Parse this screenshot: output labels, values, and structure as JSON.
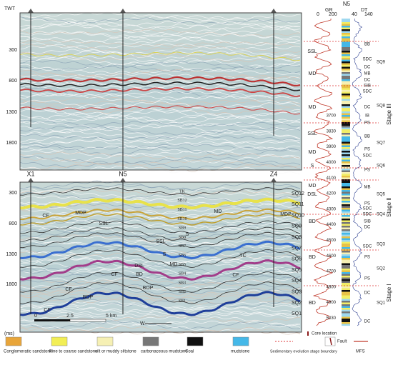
{
  "top_panel": {
    "axis_label": "TWT",
    "yticks": [
      300,
      800,
      1300,
      1800
    ]
  },
  "bottom_panel": {
    "wells": [
      "X1",
      "N5",
      "Z4"
    ],
    "yticks": [
      300,
      800,
      1300,
      1800
    ],
    "unit": "(ms)",
    "scale": [
      "0",
      "2.5",
      "5 km"
    ],
    "direction": "W",
    "horizons": [
      "TK",
      "SB12",
      "SB11",
      "SB10",
      "SB9",
      "SB8",
      "SB7",
      "SB6",
      "SB5",
      "SB4",
      "SB3",
      "SB2",
      "SB1"
    ],
    "sequences": [
      "SQ12",
      "SQ11",
      "SQ10",
      "SQ9",
      "SQ8",
      "SQ7",
      "SQ6",
      "SQ5",
      "SQ4",
      "SQ3",
      "SQ2",
      "SQ1"
    ],
    "facies": [
      "CF",
      "MDP",
      "SSL",
      "SSL",
      "MD",
      "MDP",
      "S",
      "S",
      "TC",
      "DSL",
      "CF",
      "BD",
      "MD",
      "CF",
      "BOP",
      "CF",
      "BDP",
      "CF"
    ]
  },
  "well_log": {
    "name": "N5",
    "gr_label": "GR",
    "gr_range": [
      "0",
      "200"
    ],
    "dt_label": "DT",
    "dt_range": [
      "40",
      "140"
    ],
    "depths": [
      3700,
      3830,
      3900,
      4000,
      4100,
      4200,
      4300,
      4400,
      4500,
      4600,
      4700,
      4800,
      4900,
      5030
    ],
    "facies_left": [
      "SSL",
      "MD",
      "MD",
      "SSL",
      "MD",
      "S",
      "MD",
      "DSL",
      "BD",
      "BD",
      "BD"
    ],
    "facies_right": [
      "BB",
      "SDC",
      "DC",
      "MB",
      "DC",
      "SIB",
      "SDC",
      "DC",
      "IB",
      "PS",
      "BB",
      "PS",
      "SDC",
      "PS",
      "MB",
      "PS",
      "SDC",
      "SDC",
      "SIB",
      "DC",
      "SDC",
      "PS",
      "PS",
      "DC",
      "DC"
    ],
    "sequences": [
      "SQ9",
      "SQ8",
      "SQ7",
      "SQ6",
      "SQ5",
      "SQ4",
      "SQ3",
      "SQ2",
      "SQ1"
    ],
    "stages": [
      "Stage III",
      "Stage II",
      "Stage I"
    ]
  },
  "legend": [
    "Conglomeratic sandstone",
    "Fine to coarse sandstone",
    "silt or muddy siltstone",
    "carbonaceous mudstone",
    "Coal",
    "mudstone",
    "Sedimentary evolution stage boundary",
    "Fault",
    "MFS",
    "Core location"
  ]
}
